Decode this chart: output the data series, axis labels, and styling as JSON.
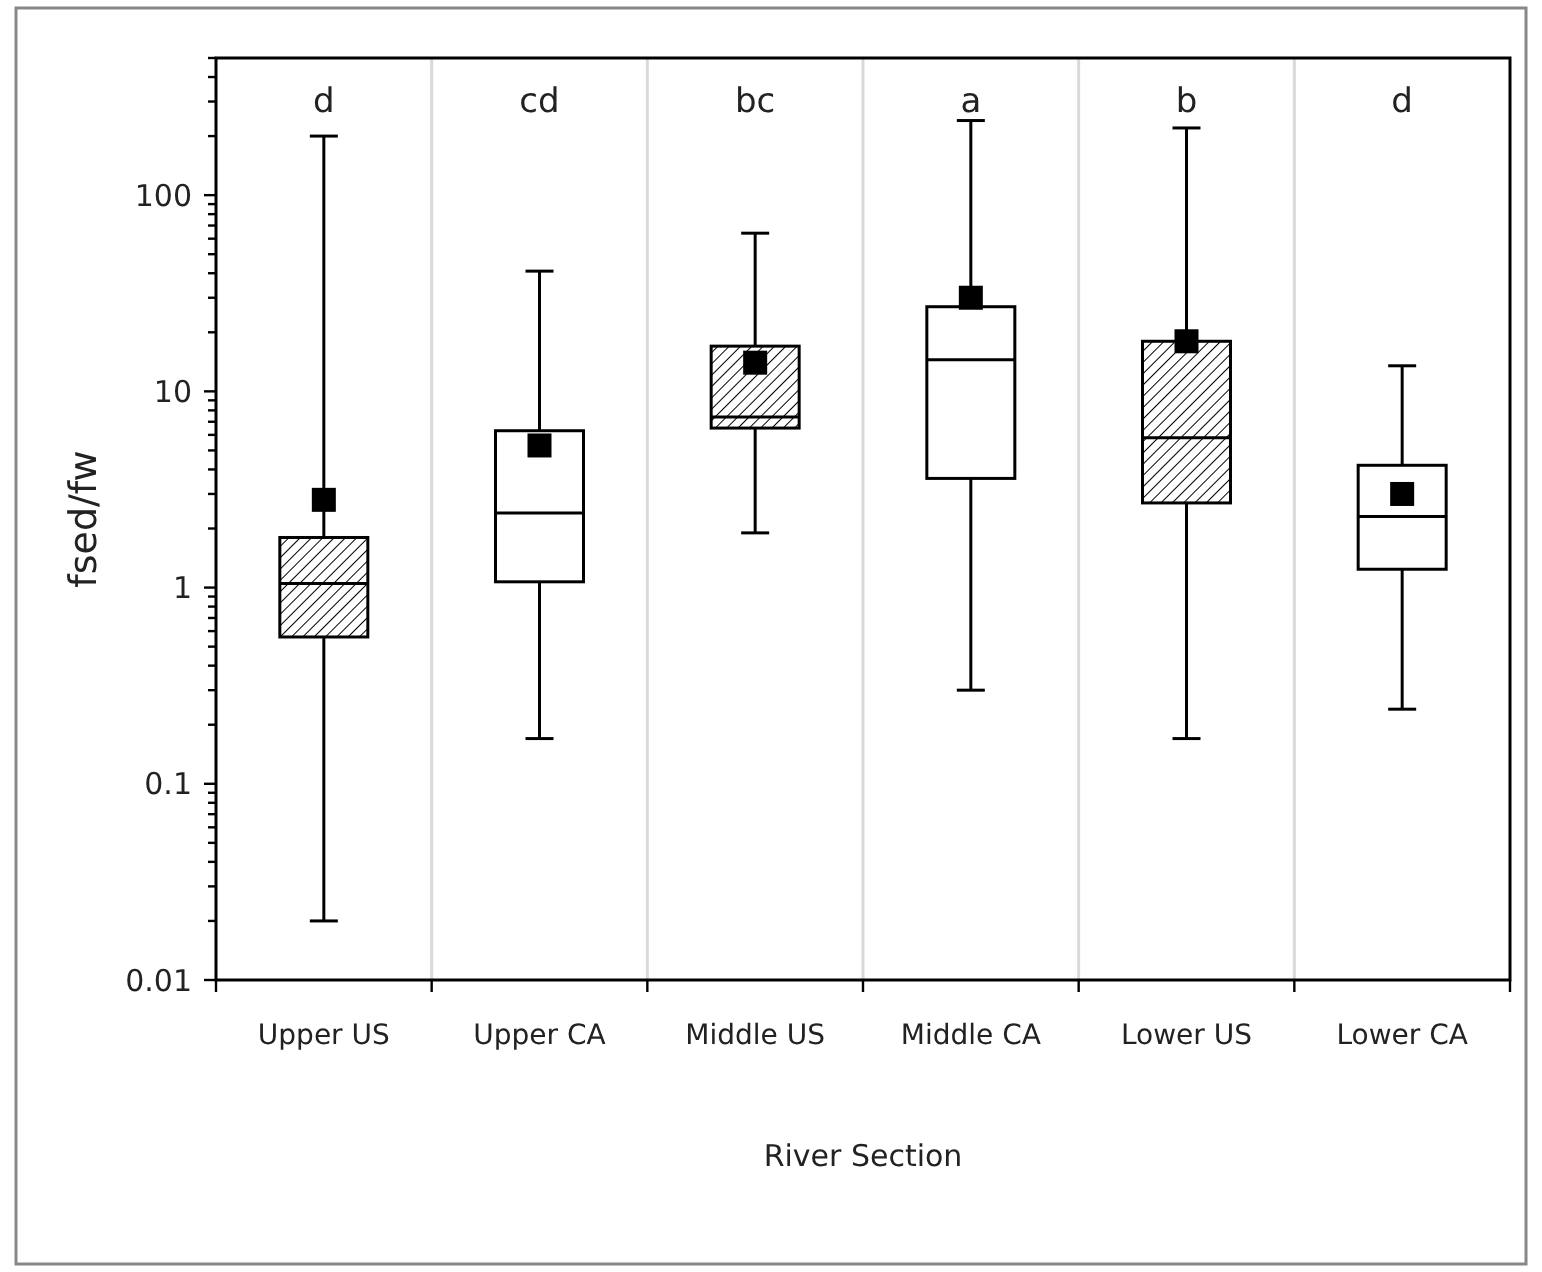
{
  "chart_data": {
    "type": "box",
    "xlabel": "River Section",
    "ylabel": "fsed/fw",
    "categories": [
      "Upper US",
      "Upper CA",
      "Middle US",
      "Middle CA",
      "Lower US",
      "Lower CA"
    ],
    "colors": [
      "#000000",
      "#ffffff",
      "#000000",
      "#ffffff",
      "#000000",
      "#ffffff"
    ],
    "boxes": [
      {
        "low": 0.02,
        "q1": 0.56,
        "median": 1.05,
        "q3": 1.8,
        "high": 200,
        "mean": 2.8
      },
      {
        "low": 0.17,
        "q1": 1.07,
        "median": 2.4,
        "q3": 6.3,
        "high": 41,
        "mean": 5.3
      },
      {
        "low": 1.9,
        "q1": 6.5,
        "median": 7.4,
        "q3": 17,
        "high": 64,
        "mean": 14
      },
      {
        "low": 0.3,
        "q1": 3.6,
        "median": 14.5,
        "q3": 27,
        "high": 240,
        "mean": 30
      },
      {
        "low": 0.17,
        "q1": 2.7,
        "median": 5.8,
        "q3": 18,
        "high": 220,
        "mean": 18
      },
      {
        "low": 0.24,
        "q1": 1.24,
        "median": 2.3,
        "q3": 4.2,
        "high": 13.5,
        "mean": 3
      }
    ],
    "annotations": [
      "d",
      "cd",
      "bc",
      "a",
      "b",
      "d"
    ],
    "log": true,
    "ylim": [
      0.01,
      500
    ],
    "yticks": [
      {
        "value": 0.01,
        "label": "0.01"
      },
      {
        "value": 0.02,
        "label": null
      },
      {
        "value": 0.03,
        "label": null
      },
      {
        "value": 0.04,
        "label": null
      },
      {
        "value": 0.05,
        "label": null
      },
      {
        "value": 0.06,
        "label": null
      },
      {
        "value": 0.07,
        "label": null
      },
      {
        "value": 0.08,
        "label": null
      },
      {
        "value": 0.09,
        "label": null
      },
      {
        "value": 0.1,
        "label": "0.1"
      },
      {
        "value": 0.2,
        "label": null
      },
      {
        "value": 0.3,
        "label": null
      },
      {
        "value": 0.4,
        "label": null
      },
      {
        "value": 0.5,
        "label": null
      },
      {
        "value": 0.6,
        "label": null
      },
      {
        "value": 0.7,
        "label": null
      },
      {
        "value": 0.8,
        "label": null
      },
      {
        "value": 0.9,
        "label": null
      },
      1,
      {
        "value": 2,
        "label": null
      },
      {
        "value": 3,
        "label": null
      },
      {
        "value": 4,
        "label": null
      },
      {
        "value": 5,
        "label": null
      },
      {
        "value": 6,
        "label": null
      },
      {
        "value": 7,
        "label": null
      },
      {
        "value": 8,
        "label": null
      },
      {
        "value": 9,
        "label": null
      },
      10,
      {
        "value": 20,
        "label": null
      },
      {
        "value": 30,
        "label": null
      },
      {
        "value": 40,
        "label": null
      },
      {
        "value": 50,
        "label": null
      },
      {
        "value": 60,
        "label": null
      },
      {
        "value": 70,
        "label": null
      },
      {
        "value": 80,
        "label": null
      },
      {
        "value": 90,
        "label": null
      },
      100,
      {
        "value": 200,
        "label": null
      },
      {
        "value": 300,
        "label": null
      },
      {
        "value": 400,
        "label": null
      },
      {
        "value": 500,
        "label": null
      }
    ],
    "grid": "x",
    "marker": "square"
  }
}
